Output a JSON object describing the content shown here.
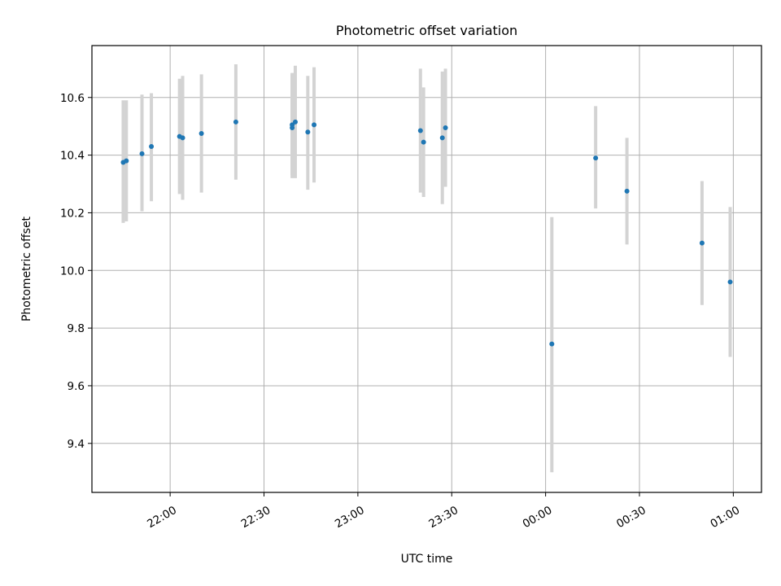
{
  "chart_data": {
    "type": "scatter",
    "title": "Photometric offset variation",
    "xlabel": "UTC time",
    "ylabel": "Photometric offset",
    "x_tick_labels": [
      "22:00",
      "22:30",
      "23:00",
      "23:30",
      "00:00",
      "00:30",
      "01:00"
    ],
    "x_tick_times": [
      "22:00",
      "22:30",
      "23:00",
      "23:30",
      "00:00",
      "00:30",
      "01:00"
    ],
    "y_ticks": [
      9.4,
      9.6,
      9.8,
      10.0,
      10.2,
      10.4,
      10.6
    ],
    "y_tick_labels": [
      "9.4",
      "9.6",
      "9.8",
      "10.0",
      "10.2",
      "10.4",
      "10.6"
    ],
    "xlim": [
      "21:35",
      "01:09"
    ],
    "ylim": [
      9.23,
      10.78
    ],
    "grid": true,
    "marker_color": "#1f77b4",
    "errorbar_color": "#d3d3d3",
    "points": [
      {
        "t": "21:45",
        "y": 10.375,
        "lo": 10.165,
        "hi": 10.59
      },
      {
        "t": "21:46",
        "y": 10.38,
        "lo": 10.17,
        "hi": 10.59
      },
      {
        "t": "21:51",
        "y": 10.405,
        "lo": 10.205,
        "hi": 10.61
      },
      {
        "t": "21:54",
        "y": 10.43,
        "lo": 10.24,
        "hi": 10.615
      },
      {
        "t": "22:03",
        "y": 10.465,
        "lo": 10.265,
        "hi": 10.665
      },
      {
        "t": "22:04",
        "y": 10.46,
        "lo": 10.245,
        "hi": 10.675
      },
      {
        "t": "22:10",
        "y": 10.475,
        "lo": 10.27,
        "hi": 10.68
      },
      {
        "t": "22:21",
        "y": 10.515,
        "lo": 10.315,
        "hi": 10.715
      },
      {
        "t": "22:39",
        "y": 10.495,
        "lo": 10.32,
        "hi": 10.68
      },
      {
        "t": "22:39",
        "y": 10.505,
        "lo": 10.33,
        "hi": 10.685
      },
      {
        "t": "22:40",
        "y": 10.515,
        "lo": 10.32,
        "hi": 10.71
      },
      {
        "t": "22:44",
        "y": 10.48,
        "lo": 10.28,
        "hi": 10.675
      },
      {
        "t": "22:46",
        "y": 10.505,
        "lo": 10.305,
        "hi": 10.705
      },
      {
        "t": "23:20",
        "y": 10.485,
        "lo": 10.27,
        "hi": 10.7
      },
      {
        "t": "23:21",
        "y": 10.445,
        "lo": 10.255,
        "hi": 10.635
      },
      {
        "t": "23:27",
        "y": 10.46,
        "lo": 10.23,
        "hi": 10.69
      },
      {
        "t": "23:28",
        "y": 10.495,
        "lo": 10.29,
        "hi": 10.7
      },
      {
        "t": "00:02",
        "y": 9.745,
        "lo": 9.3,
        "hi": 10.185
      },
      {
        "t": "00:16",
        "y": 10.39,
        "lo": 10.215,
        "hi": 10.57
      },
      {
        "t": "00:26",
        "y": 10.275,
        "lo": 10.09,
        "hi": 10.46
      },
      {
        "t": "00:50",
        "y": 10.095,
        "lo": 9.88,
        "hi": 10.31
      },
      {
        "t": "00:59",
        "y": 9.96,
        "lo": 9.7,
        "hi": 10.22
      }
    ]
  }
}
